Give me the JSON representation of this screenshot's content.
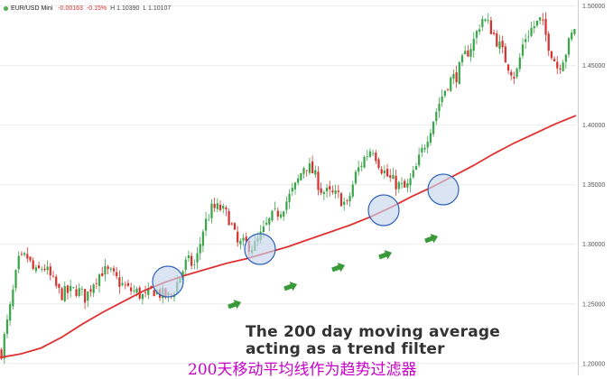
{
  "header": {
    "symbol": "EUR/USD Mini",
    "change": "-0.00163",
    "change_pct": "-0.15%",
    "high": "H 1.10390",
    "low": "L 1.10107"
  },
  "caption": {
    "line1": "The 200 day moving average",
    "line2": "acting as a trend filter"
  },
  "subtitle": "200天移动平均线作为趋势过滤器",
  "colors": {
    "bull": "#3aa64a",
    "bear": "#d8322f",
    "ma": "#e03131",
    "circle_fill": "#c8d6ec",
    "circle_stroke": "#2c62b8",
    "arrow": "#3a9a3a"
  },
  "chart_data": {
    "type": "line",
    "title": "",
    "xlabel": "",
    "ylabel": "",
    "ylim": [
      1.19,
      1.505
    ],
    "yticks": [
      "1.50000",
      "1.45000",
      "1.40000",
      "1.35000",
      "1.30000",
      "1.25000",
      "1.20000"
    ],
    "series": [
      {
        "name": "",
        "values": [
          1.21,
          1.245,
          1.285,
          1.29,
          1.275,
          1.282,
          1.27,
          1.258,
          1.26,
          1.262,
          1.255,
          1.27,
          1.278,
          1.275,
          1.268,
          1.262,
          1.26,
          1.255,
          1.262,
          1.258,
          1.255,
          1.27,
          1.286,
          1.282,
          1.315,
          1.33,
          1.33,
          1.322,
          1.3,
          1.3,
          1.298,
          1.31,
          1.322,
          1.328,
          1.338,
          1.35,
          1.368,
          1.36,
          1.345,
          1.342,
          1.34,
          1.332,
          1.358,
          1.372,
          1.382,
          1.365,
          1.355,
          1.35,
          1.346,
          1.36,
          1.38,
          1.4,
          1.42,
          1.436,
          1.442,
          1.458,
          1.47,
          1.49,
          1.482,
          1.468,
          1.452,
          1.44,
          1.472,
          1.482,
          1.488,
          1.466,
          1.448,
          1.462,
          1.482
        ]
      },
      {
        "name": "",
        "values": [
          1.205,
          1.208,
          1.213,
          1.222,
          1.233,
          1.243,
          1.252,
          1.261,
          1.268,
          1.274,
          1.279,
          1.284,
          1.288,
          1.293,
          1.298,
          1.304,
          1.31,
          1.316,
          1.323,
          1.331,
          1.34,
          1.348,
          1.357,
          1.366,
          1.376,
          1.385,
          1.393,
          1.401,
          1.408
        ]
      }
    ],
    "highlight_circles": 4,
    "arrows": 5
  }
}
